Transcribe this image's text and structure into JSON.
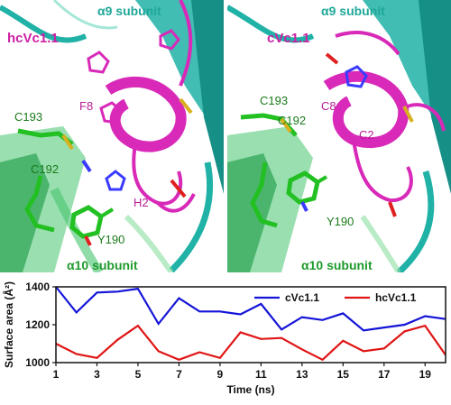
{
  "panels": {
    "left": {
      "top_label": "α9 subunit",
      "title": "hcVc1.1",
      "bottom_label": "α10 subunit",
      "residues": {
        "F8": "F8",
        "C193": "C193",
        "C192": "C192",
        "H2": "H2",
        "Y190": "Y190"
      }
    },
    "right": {
      "top_label": "α9 subunit",
      "title": "cVc1.1",
      "bottom_label": "α10 subunit",
      "residues": {
        "C193": "C193",
        "C8": "C8",
        "C192": "C192",
        "C2": "C2",
        "Y190": "Y190"
      }
    }
  },
  "colors": {
    "alpha9": "#20b2a6",
    "alpha10": "#46c46e",
    "peptide": "#d829b8",
    "green_stick": "#22c022",
    "blue_series": "#1414d8",
    "red_series": "#e01414"
  },
  "chart_data": {
    "type": "line",
    "xlabel": "Time (ns)",
    "ylabel": "Surface area (Å²)",
    "x": [
      1,
      2,
      3,
      4,
      5,
      6,
      7,
      8,
      9,
      10,
      11,
      12,
      13,
      14,
      15,
      16,
      17,
      18,
      19,
      20
    ],
    "xlim": [
      1,
      20
    ],
    "ylim": [
      1000,
      1400
    ],
    "xticks": [
      "1",
      "3",
      "5",
      "7",
      "9",
      "11",
      "13",
      "15",
      "17",
      "19"
    ],
    "yticks": [
      "1000",
      "1200",
      "1400"
    ],
    "legend": "top-right",
    "series": [
      {
        "name": "cVc1.1",
        "color": "#1414d8",
        "values": [
          1400,
          1265,
          1370,
          1375,
          1390,
          1205,
          1340,
          1270,
          1270,
          1255,
          1310,
          1175,
          1240,
          1225,
          1260,
          1170,
          1185,
          1200,
          1245,
          1230
        ]
      },
      {
        "name": "hcVc1.1",
        "color": "#e01414",
        "values": [
          1100,
          1045,
          1025,
          1120,
          1195,
          1060,
          1015,
          1055,
          1025,
          1160,
          1125,
          1130,
          1070,
          1015,
          1115,
          1060,
          1075,
          1165,
          1195,
          1040
        ]
      }
    ]
  }
}
